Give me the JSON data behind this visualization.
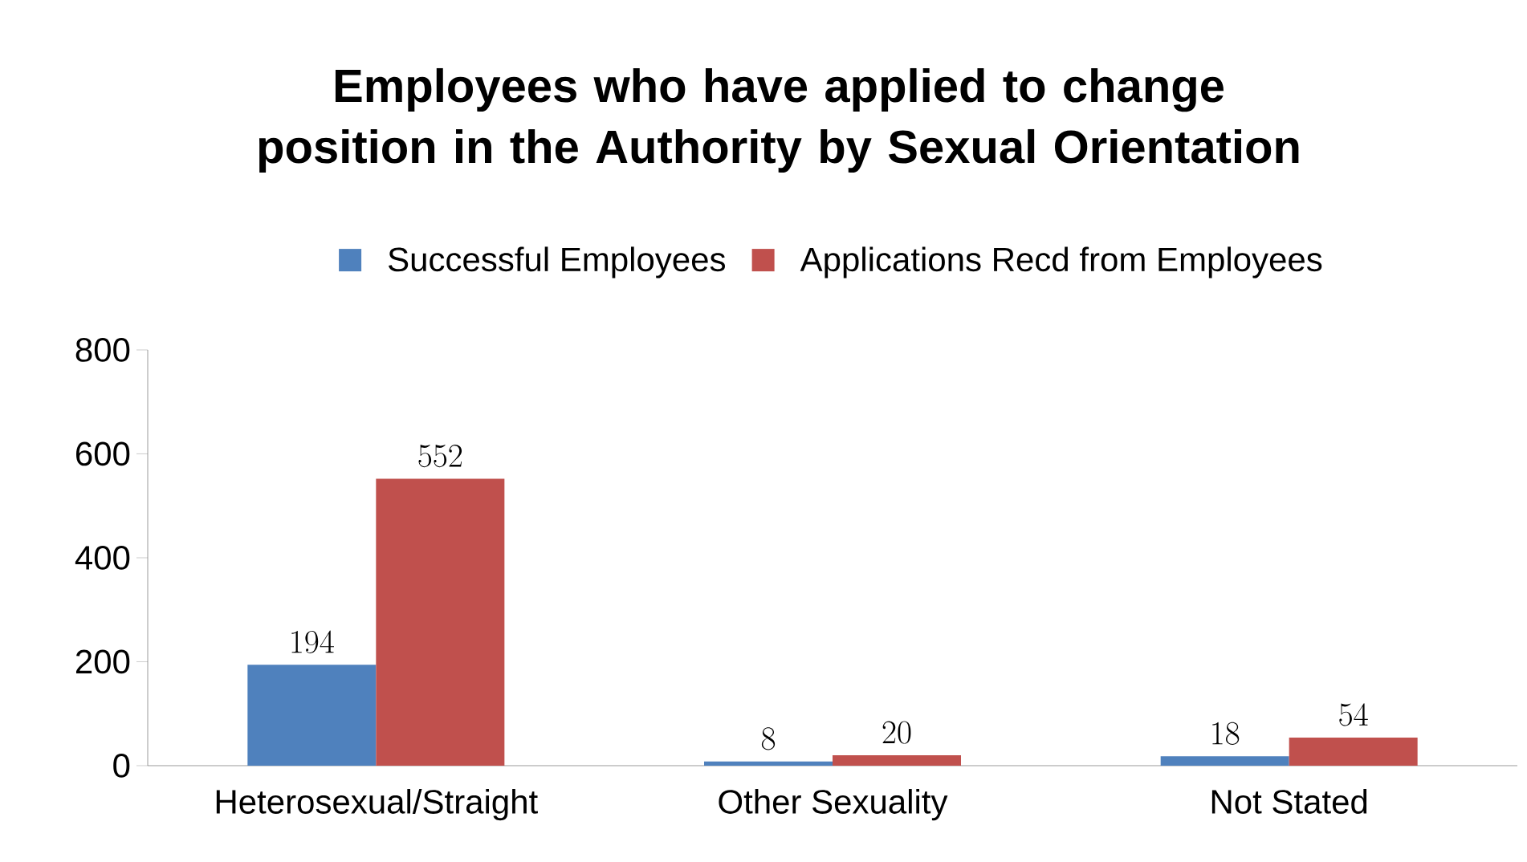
{
  "chart_data": {
    "type": "bar",
    "title": "Employees who have applied to change position in the Authority by Sexual Orientation",
    "categories": [
      "Heterosexual/Straight",
      "Other Sexuality",
      "Not Stated"
    ],
    "series": [
      {
        "name": "Successful Employees",
        "color": "#4f81bd",
        "values": [
          194,
          8,
          18
        ]
      },
      {
        "name": "Applications Recd from Employees",
        "color": "#c0504d",
        "values": [
          552,
          20,
          54
        ]
      }
    ],
    "ylim": [
      0,
      800
    ],
    "yticks": [
      0,
      200,
      400,
      600,
      800
    ],
    "data_labels": true,
    "legend": "top"
  }
}
